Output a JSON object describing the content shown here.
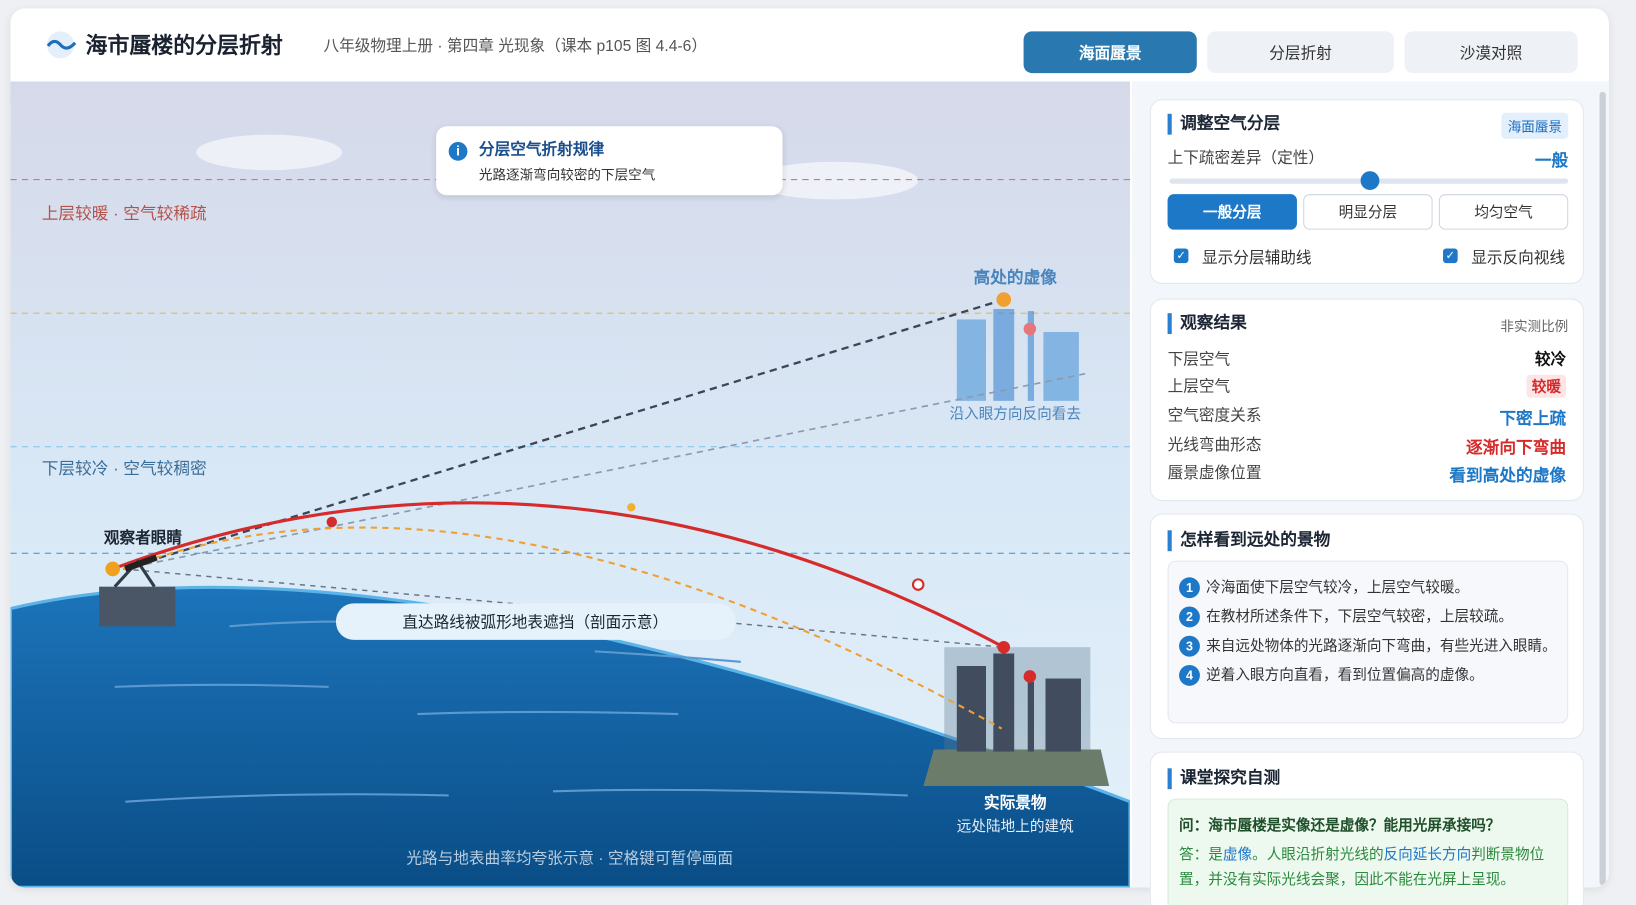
{
  "header": {
    "title": "海市蜃楼的分层折射",
    "subtitle": "八年级物理上册 · 第四章 光现象（课本 p105 图 4.4-6）",
    "tabs": [
      "海面蜃景",
      "分层折射",
      "沙漠对照"
    ]
  },
  "scene": {
    "info_title": "分层空气折射规律",
    "info_text": "光路逐渐弯向较密的下层空气",
    "upper_layer": "上层较暖 · 空气较稀疏",
    "lower_layer": "下层较冷 · 空气较稠密",
    "virtual_image": "高处的虚像",
    "reverse_view": "沿入眼方向反向看去",
    "observer": "观察者眼睛",
    "blocked": "直达路线被弧形地表遮挡（剖面示意）",
    "real_object": "实际景物",
    "real_object_note": "远处陆地上的建筑",
    "footer": "光路与地表曲率均夸张示意 · 空格键可暂停画面"
  },
  "controls": {
    "title": "调整空气分层",
    "badge": "海面蜃景",
    "slider_label": "上下疏密差异（定性）",
    "slider_value": "一般",
    "buttons": [
      "一般分层",
      "明显分层",
      "均匀空气"
    ],
    "checkboxes": [
      "显示分层辅助线",
      "显示反向视线"
    ]
  },
  "results": {
    "title": "观察结果",
    "note": "非实测比例",
    "rows": [
      [
        "下层空气",
        "较冷"
      ],
      [
        "上层空气",
        "较暖"
      ],
      [
        "空气密度关系",
        "下密上疏"
      ],
      [
        "光线弯曲形态",
        "逐渐向下弯曲"
      ],
      [
        "蜃景虚像位置",
        "看到高处的虚像"
      ]
    ]
  },
  "explain": {
    "title": "怎样看到远处的景物",
    "steps": [
      {
        "no": 1,
        "text": "冷海面使下层空气较冷，上层空气较暖。"
      },
      {
        "no": 2,
        "text": "在教材所述条件下，下层空气较密，上层较疏。"
      },
      {
        "no": 3,
        "text": "来自远处物体的光路逐渐向下弯曲，有些光进入眼睛。"
      },
      {
        "no": 4,
        "text": "逆着入眼方向直看，看到位置偏高的虚像。"
      }
    ]
  },
  "quiz": {
    "title": "课堂探究自测",
    "question": "问：海市蜃楼是实像还是虚像？能用光屏承接吗？",
    "answer": [
      "答：是",
      "虚像",
      "。人眼沿折射光线的",
      "反向延长方向",
      "判断景物位置，并没有实际光线会聚，因此不能在光屏上呈现。"
    ]
  }
}
